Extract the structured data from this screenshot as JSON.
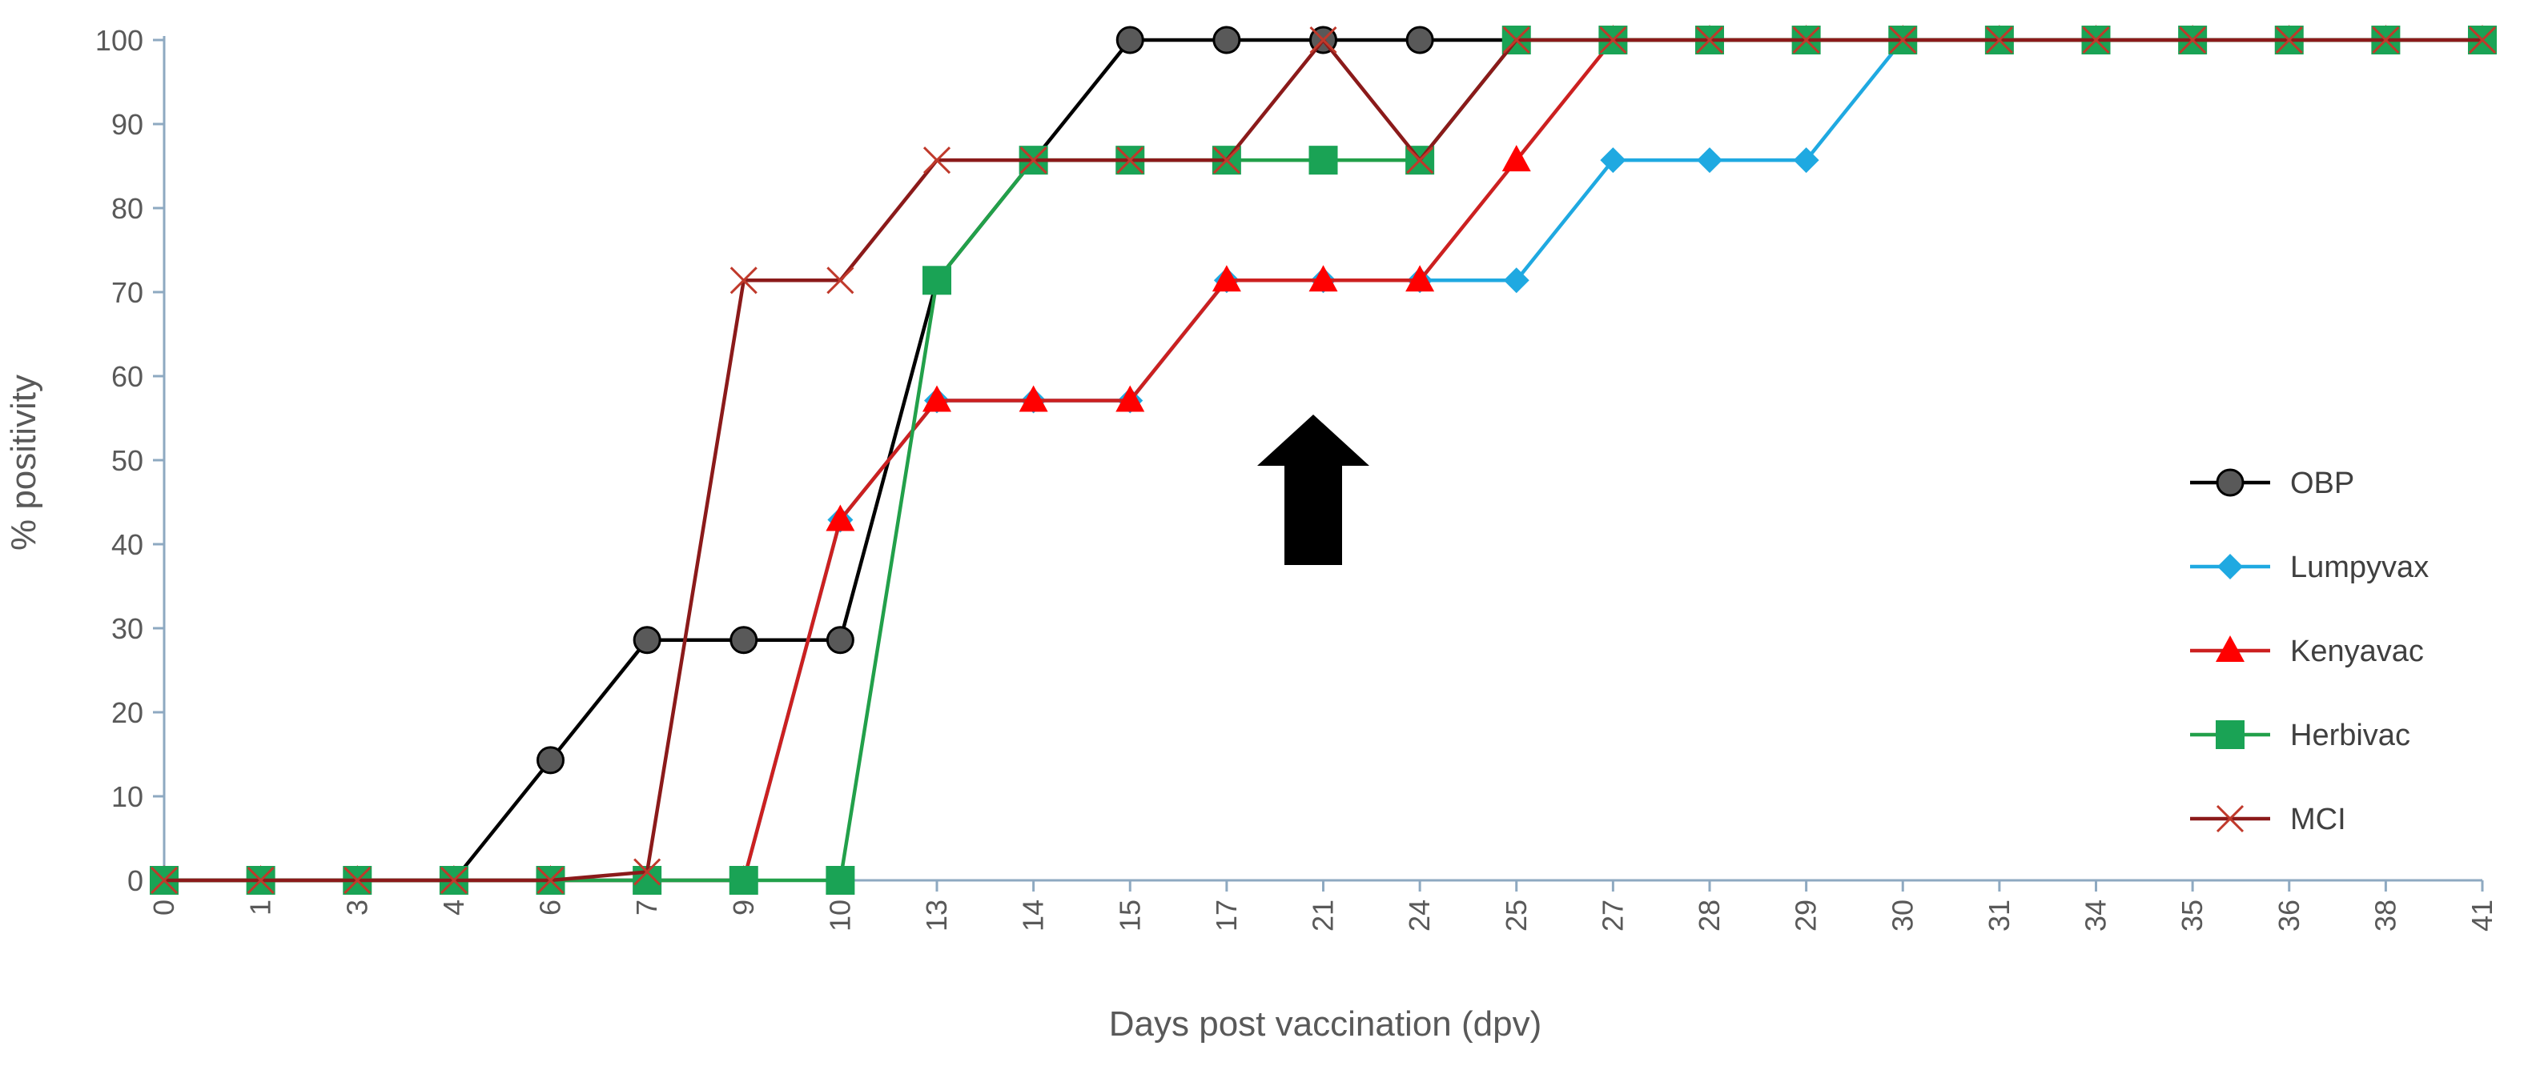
{
  "chart_data": {
    "type": "line",
    "title": "",
    "xlabel": "Days post vaccination (dpv)",
    "ylabel": "% positivity",
    "ylim": [
      0,
      100
    ],
    "yticks": [
      0,
      10,
      20,
      30,
      40,
      50,
      60,
      70,
      80,
      90,
      100
    ],
    "categories": [
      "0",
      "1",
      "3",
      "4",
      "6",
      "7",
      "9",
      "10",
      "13",
      "14",
      "15",
      "17",
      "21",
      "24",
      "25",
      "27",
      "28",
      "29",
      "30",
      "31",
      "34",
      "35",
      "36",
      "38",
      "41"
    ],
    "legend_position": "right",
    "annotation": "arrow-up at 21 dpv",
    "series": [
      {
        "name": "OBP",
        "color": "#000000",
        "marker": "circle",
        "marker_color": "#595959",
        "values": [
          0,
          0,
          0,
          0,
          14.3,
          28.6,
          28.6,
          28.6,
          71.4,
          85.7,
          100,
          100,
          100,
          100,
          100,
          100,
          100,
          100,
          100,
          100,
          100,
          100,
          100,
          100,
          100
        ]
      },
      {
        "name": "Lumpyvax",
        "color": "#1fa9e1",
        "marker": "diamond",
        "marker_color": "#1fa9e1",
        "values": [
          0,
          0,
          0,
          0,
          0,
          0,
          0,
          42.9,
          57.1,
          57.1,
          57.1,
          71.4,
          71.4,
          71.4,
          71.4,
          85.7,
          85.7,
          85.7,
          100,
          100,
          100,
          100,
          100,
          100,
          100
        ]
      },
      {
        "name": "Kenyavac",
        "color": "#cc2020",
        "marker": "triangle",
        "marker_color": "#ff0000",
        "values": [
          0,
          0,
          0,
          0,
          0,
          0,
          0,
          42.9,
          57.1,
          57.1,
          57.1,
          71.4,
          71.4,
          71.4,
          85.7,
          100,
          100,
          100,
          100,
          100,
          100,
          100,
          100,
          100,
          100
        ]
      },
      {
        "name": "Herbivac",
        "color": "#22a04a",
        "marker": "square",
        "marker_color": "#1aa355",
        "values": [
          0,
          0,
          0,
          0,
          0,
          0,
          0,
          0,
          71.4,
          85.7,
          85.7,
          85.7,
          85.7,
          85.7,
          100,
          100,
          100,
          100,
          100,
          100,
          100,
          100,
          100,
          100,
          100
        ]
      },
      {
        "name": "MCI",
        "color": "#8b1a1a",
        "marker": "x",
        "marker_color": "#c0392b",
        "values": [
          0,
          0,
          0,
          0,
          0,
          1,
          71.4,
          71.4,
          85.7,
          85.7,
          85.7,
          85.7,
          100,
          85.7,
          100,
          100,
          100,
          100,
          100,
          100,
          100,
          100,
          100,
          100,
          100
        ]
      }
    ]
  }
}
